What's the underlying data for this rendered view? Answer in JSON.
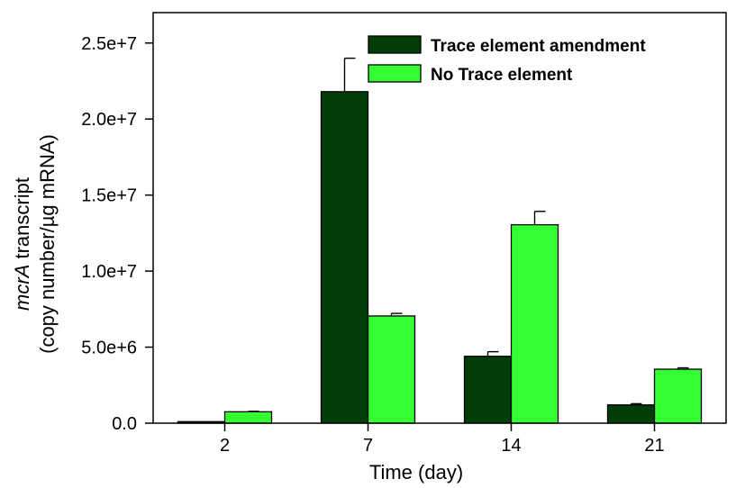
{
  "chart_data": {
    "type": "bar",
    "categories": [
      "2",
      "7",
      "14",
      "21"
    ],
    "series": [
      {
        "name": "Trace element amendment",
        "color": "#003d08",
        "values": [
          100000,
          21800000,
          4400000,
          1200000
        ],
        "errors": [
          0,
          2200000,
          300000,
          80000
        ]
      },
      {
        "name": " No Trace element",
        "color": "#33ff33",
        "values": [
          750000,
          7050000,
          13050000,
          3550000
        ],
        "errors": [
          30000,
          170000,
          880000,
          90000
        ]
      }
    ],
    "xlabel": "Time (day)",
    "ylabel_italic": "mcrA",
    "ylabel_line1_rest": " transcript",
    "ylabel_line2": "(copy number/µg  mRNA)",
    "ylim": [
      0,
      27000000
    ],
    "yticks": [
      0,
      5000000,
      10000000,
      15000000,
      20000000,
      25000000
    ],
    "ytick_labels": [
      "0.0",
      "5.0e+6",
      "1.0e+7",
      "1.5e+7",
      "2.0e+7",
      "2.5e+7"
    ],
    "error_bars": true,
    "grid": false,
    "legend_position": "top-right"
  }
}
